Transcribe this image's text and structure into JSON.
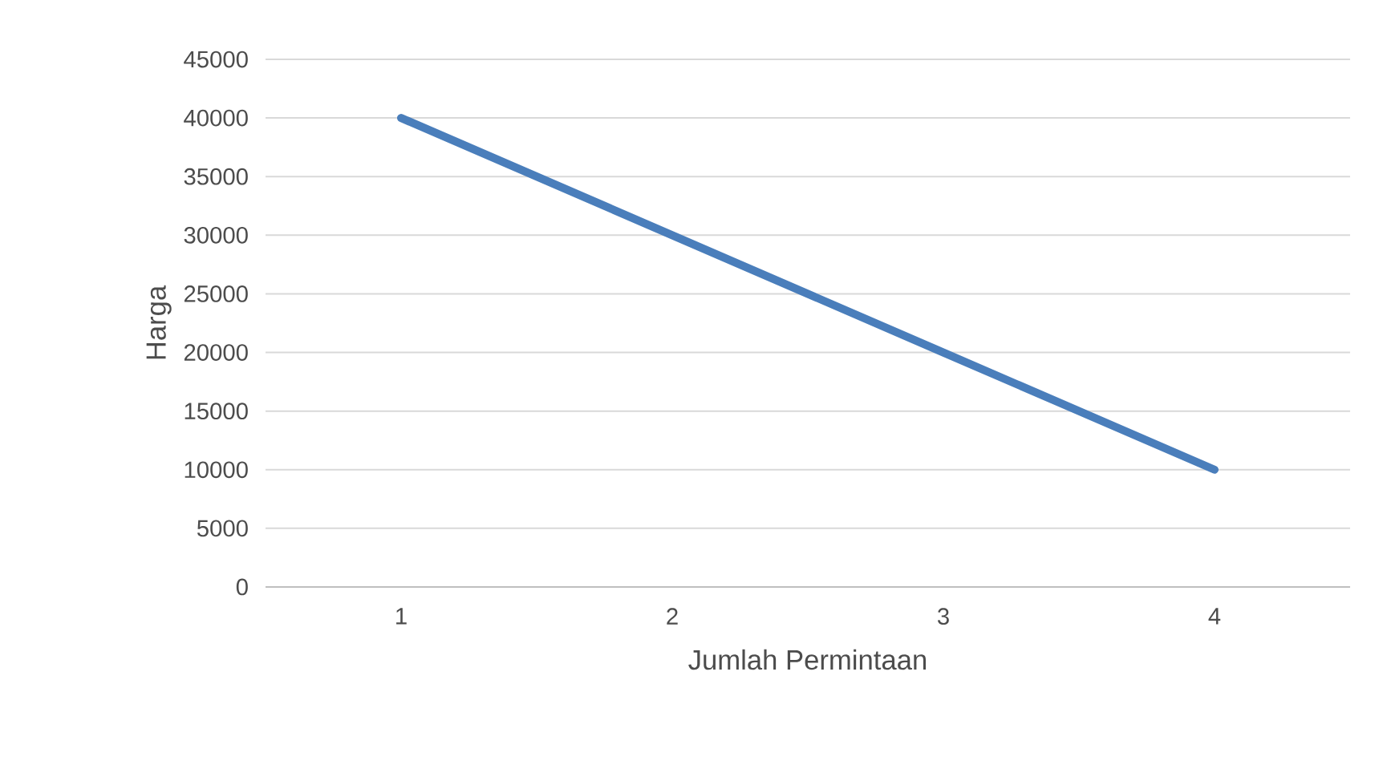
{
  "chart_data": {
    "type": "line",
    "xlabel": "Jumlah Permintaan",
    "ylabel": "Harga",
    "categories": [
      "1",
      "2",
      "3",
      "4"
    ],
    "series": [
      {
        "color": "#4a7ebb",
        "values": [
          40000,
          30000,
          20000,
          10000
        ]
      }
    ],
    "ylim": [
      0,
      45000
    ],
    "yticks": [
      0,
      5000,
      10000,
      15000,
      20000,
      25000,
      30000,
      35000,
      40000,
      45000
    ],
    "grid": "y"
  }
}
